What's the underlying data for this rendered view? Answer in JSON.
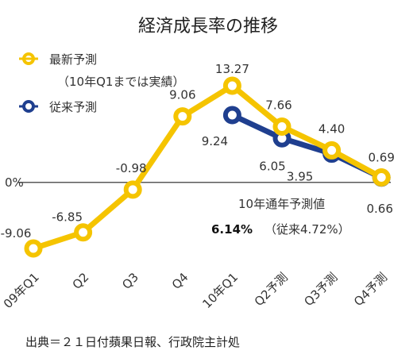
{
  "chart_data": {
    "type": "line",
    "title": "経済成長率の推移",
    "categories": [
      "09年Q1",
      "Q2",
      "Q3",
      "Q4",
      "10年Q1",
      "Q2予測",
      "Q3予測",
      "Q4予測"
    ],
    "series": [
      {
        "name": "最新予測",
        "note": "（10年Q1までは実績）",
        "color": "#f5c400",
        "values": [
          -9.06,
          -6.85,
          -0.98,
          9.06,
          13.27,
          7.66,
          4.4,
          0.69
        ],
        "labels": [
          "-9.06",
          "-6.85",
          "-0.98",
          "9.06",
          "13.27",
          "7.66",
          "4.40",
          "0.69"
        ]
      },
      {
        "name": "従来予測",
        "color": "#1f3f8f",
        "values": [
          null,
          null,
          null,
          null,
          9.24,
          6.05,
          3.95,
          0.66
        ],
        "labels": [
          "",
          "",
          "",
          "",
          "9.24",
          "6.05",
          "3.95",
          "0.66"
        ]
      }
    ],
    "ylim": [
      -12,
      16
    ],
    "zero_label": "0%",
    "legend_position": "top-left",
    "annotation": {
      "line1": "10年通年予測値",
      "value": "6.14%",
      "note": "（従来4.72%）"
    }
  },
  "source": "出典＝２１日付蘋果日報、行政院主計処"
}
